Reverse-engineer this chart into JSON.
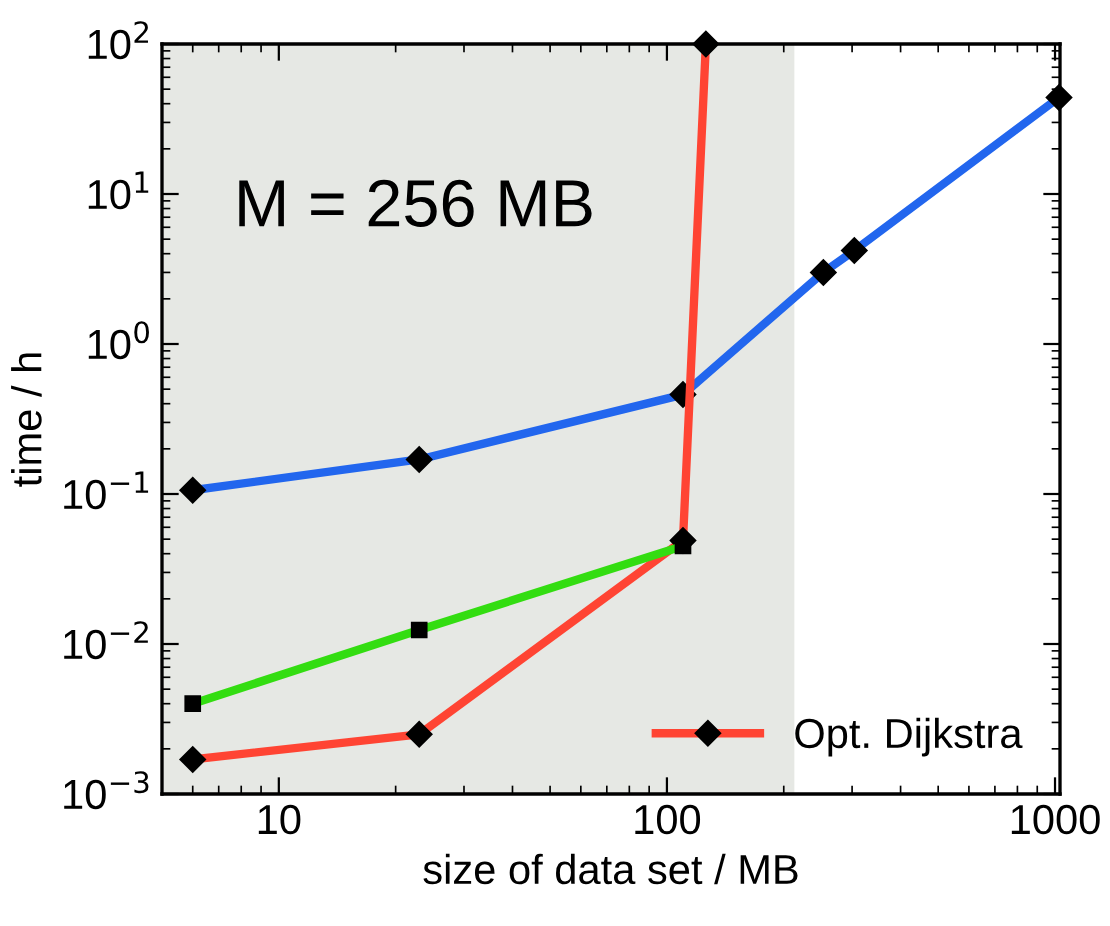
{
  "chart_data": {
    "type": "line",
    "xlabel": "size of data set / MB",
    "ylabel": "time / h",
    "annotations": [
      "M = 256 MB"
    ],
    "log": "xy",
    "marker": "diamond",
    "legend": "bottom right",
    "grid": false,
    "xlim": [
      5,
      1030
    ],
    "xticks": [
      10,
      100,
      1000
    ],
    "ylim": [
      0.001,
      100
    ],
    "yticks": [
      {
        "value": 0.001,
        "label": "10$^{−3}$"
      },
      {
        "value": 0.01,
        "label": "10$^{−2}$"
      },
      {
        "value": 0.1,
        "label": "10$^{−1}$"
      },
      {
        "value": 1,
        "label": "10$^{0}$"
      },
      {
        "value": 10,
        "label": "10$^{1}$"
      },
      {
        "value": 100,
        "label": "10$^{2}$"
      }
    ],
    "bands": [
      {
        "axis": "x",
        "from": 5,
        "to": 213,
        "color": "#e6e8e4"
      }
    ],
    "series": [
      {
        "color": "#33dd11",
        "marker": "square",
        "x": [
          6,
          23,
          110
        ],
        "values": [
          0.004,
          0.0124,
          0.045
        ]
      },
      {
        "name": "Opt. Dijkstra",
        "color": "#ff4433",
        "x": [
          6,
          23,
          110,
          126
        ],
        "values": [
          0.0017,
          0.0025,
          0.049,
          100
        ]
      },
      {
        "color": "#2266ee",
        "x": [
          6,
          23,
          110,
          253,
          304,
          1024
        ],
        "values": [
          0.106,
          0.17,
          0.46,
          3.0,
          4.2,
          44
        ]
      }
    ]
  }
}
